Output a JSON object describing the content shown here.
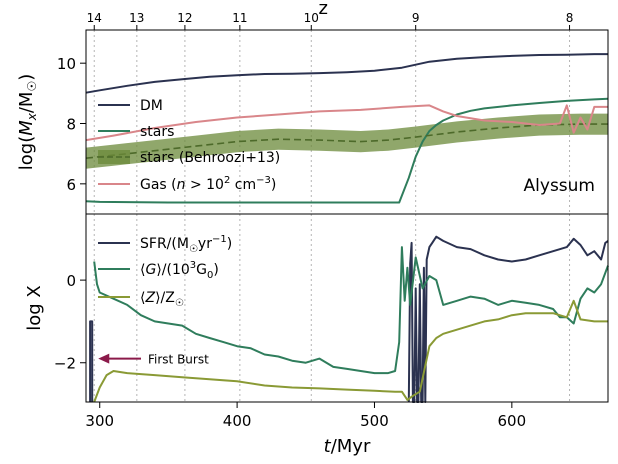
{
  "chart_data": [
    {
      "type": "line",
      "panel": "top",
      "ylabel": "log(M_x/M_☉)",
      "ylabel_parts": {
        "pre": "log(",
        "M": "M",
        "sub_x": "x",
        "slash": "/M",
        "sub_sun": "☉",
        "post": ")"
      },
      "xlim": [
        290,
        670
      ],
      "ylim": [
        5.0,
        11.1
      ],
      "yticks": [
        6,
        8,
        10
      ],
      "top_axis": {
        "label": "z",
        "ticks": [
          {
            "label": "14",
            "t": 296
          },
          {
            "label": "13",
            "t": 327
          },
          {
            "label": "12",
            "t": 362
          },
          {
            "label": "11",
            "t": 402
          },
          {
            "label": "10",
            "t": 454
          },
          {
            "label": "9",
            "t": 530
          },
          {
            "label": "8",
            "t": 642
          }
        ]
      },
      "panel_label": "Alyssum",
      "legend_position": "upper-left",
      "legend": [
        {
          "label": "DM",
          "color": "#2b3250",
          "style": "solid"
        },
        {
          "label": "stars",
          "color": "#2f7d5c",
          "style": "solid"
        },
        {
          "label": "stars (Behroozi+13)",
          "color": "#6b8a3a",
          "style": "dashed-band"
        },
        {
          "label_pre": "Gas (",
          "label_n": "n",
          "label_gt": " > 10",
          "label_exp": "2",
          "label_unit": " cm",
          "label_unit_exp": "−3",
          "label_post": ")",
          "color": "#d9868a",
          "style": "solid"
        }
      ],
      "series": [
        {
          "name": "DM",
          "color": "#2b3250",
          "x": [
            290,
            300,
            320,
            340,
            360,
            380,
            400,
            420,
            440,
            460,
            480,
            500,
            520,
            540,
            560,
            580,
            600,
            620,
            640,
            660,
            670
          ],
          "y": [
            9.02,
            9.1,
            9.25,
            9.38,
            9.47,
            9.55,
            9.6,
            9.64,
            9.65,
            9.67,
            9.7,
            9.75,
            9.85,
            10.05,
            10.15,
            10.2,
            10.24,
            10.27,
            10.28,
            10.3,
            10.3
          ]
        },
        {
          "name": "stars",
          "color": "#2f7d5c",
          "x": [
            290,
            300,
            350,
            400,
            450,
            500,
            518,
            525,
            530,
            535,
            540,
            545,
            550,
            560,
            570,
            580,
            600,
            620,
            640,
            660,
            670
          ],
          "y": [
            5.42,
            5.4,
            5.38,
            5.38,
            5.38,
            5.38,
            5.38,
            6.2,
            6.9,
            7.4,
            7.75,
            7.95,
            8.1,
            8.3,
            8.42,
            8.5,
            8.6,
            8.68,
            8.75,
            8.8,
            8.82
          ]
        },
        {
          "name": "stars (Behroozi+13)",
          "color": "#6b8a3a",
          "x": [
            290,
            310,
            340,
            370,
            400,
            430,
            460,
            490,
            510,
            530,
            560,
            590,
            620,
            650,
            670
          ],
          "y": [
            6.85,
            6.95,
            7.1,
            7.25,
            7.4,
            7.48,
            7.45,
            7.4,
            7.45,
            7.55,
            7.72,
            7.85,
            7.95,
            7.98,
            7.98
          ],
          "band_halfwidth": 0.35
        },
        {
          "name": "Gas",
          "color": "#d9868a",
          "x": [
            290,
            310,
            340,
            370,
            400,
            430,
            460,
            490,
            520,
            540,
            550,
            560,
            580,
            600,
            620,
            635,
            640,
            645,
            650,
            655,
            660,
            670
          ],
          "y": [
            7.45,
            7.6,
            7.85,
            8.05,
            8.2,
            8.3,
            8.4,
            8.45,
            8.55,
            8.6,
            8.4,
            8.25,
            8.1,
            8.05,
            7.95,
            8.0,
            8.6,
            7.7,
            8.2,
            7.8,
            8.55,
            8.55
          ]
        }
      ]
    },
    {
      "type": "line",
      "panel": "bottom",
      "ylabel": "log X",
      "xlabel": "t/Myr",
      "xlabel_parts": {
        "var": "t",
        "unit": "/Myr"
      },
      "xlim": [
        290,
        670
      ],
      "ylim": [
        -2.95,
        1.6
      ],
      "yticks": [
        -2,
        0
      ],
      "ytick_labels": [
        "−2",
        "0"
      ],
      "xticks": [
        300,
        400,
        500,
        600
      ],
      "legend_position": "upper-left",
      "legend": [
        {
          "label_pre": "SFR/(M",
          "label_sub": "☉",
          "label_post": "yr",
          "label_exp": "−1",
          "label_end": ")",
          "color": "#2b3250"
        },
        {
          "label_pre": "⟨",
          "label_var": "G",
          "label_mid": "⟩/(10",
          "label_exp": "3",
          "label_post": "G",
          "label_sub": "0",
          "label_end": ")",
          "color": "#2f7d5c"
        },
        {
          "label_pre": "⟨",
          "label_var": "Z",
          "label_mid": "⟩/Z",
          "label_sub": "☉",
          "color": "#8a9a35"
        }
      ],
      "annotation": {
        "text": "First Burst",
        "arrow_to_t": 296,
        "at_y": -1.9,
        "color": "#8b1a4a"
      },
      "series": [
        {
          "name": "SFR",
          "color": "#2b3250",
          "segments": [
            {
              "x": [
                293,
                293,
                294.5,
                294.5
              ],
              "y": [
                -2.95,
                -1.0,
                -1.0,
                -2.95
              ]
            },
            {
              "x": [
                525,
                526,
                527,
                528,
                529,
                530,
                531,
                532,
                533,
                534,
                535,
                536,
                537,
                538,
                540,
                542,
                545,
                550,
                560,
                570,
                580,
                590,
                600,
                610,
                620,
                630,
                640,
                645,
                650,
                655,
                660,
                665,
                668,
                670
              ],
              "y": [
                -2.95,
                0.4,
                0.9,
                -2.95,
                -2.95,
                -0.2,
                -2.95,
                -2.95,
                -0.1,
                -2.95,
                -2.95,
                0.3,
                -2.95,
                0.5,
                0.8,
                0.9,
                1.05,
                0.95,
                0.8,
                0.75,
                0.6,
                0.5,
                0.45,
                0.5,
                0.6,
                0.7,
                0.8,
                1.0,
                0.85,
                0.6,
                0.7,
                0.5,
                0.9,
                0.95
              ]
            }
          ]
        },
        {
          "name": "G",
          "color": "#2f7d5c",
          "x": [
            296,
            298,
            300,
            310,
            320,
            330,
            340,
            350,
            360,
            370,
            380,
            390,
            400,
            410,
            420,
            430,
            440,
            450,
            460,
            470,
            480,
            490,
            500,
            510,
            515,
            518,
            520,
            522,
            524,
            526,
            530,
            535,
            540,
            545,
            550,
            560,
            570,
            580,
            590,
            600,
            610,
            620,
            630,
            635,
            640,
            645,
            650,
            655,
            660,
            665,
            670
          ],
          "y": [
            0.45,
            -0.1,
            -0.3,
            -0.45,
            -0.6,
            -0.85,
            -1.0,
            -1.05,
            -1.1,
            -1.3,
            -1.4,
            -1.5,
            -1.6,
            -1.65,
            -1.8,
            -1.85,
            -1.95,
            -2.0,
            -1.9,
            -2.1,
            -2.15,
            -2.2,
            -2.25,
            -2.25,
            -2.2,
            -1.5,
            0.8,
            -0.5,
            0.3,
            -0.6,
            0.55,
            -0.2,
            0.1,
            0.0,
            -0.6,
            -0.5,
            -0.4,
            -0.45,
            -0.6,
            -0.5,
            -0.55,
            -0.6,
            -0.7,
            -0.9,
            -0.9,
            -1.05,
            -0.45,
            -0.2,
            -0.3,
            -0.1,
            0.35
          ]
        },
        {
          "name": "Z",
          "color": "#8a9a35",
          "x": [
            296,
            300,
            305,
            310,
            320,
            340,
            360,
            380,
            400,
            420,
            440,
            460,
            480,
            500,
            515,
            520,
            524,
            528,
            533,
            540,
            545,
            550,
            560,
            570,
            580,
            590,
            600,
            610,
            620,
            630,
            640,
            645,
            650,
            660,
            670
          ],
          "y": [
            -2.95,
            -2.6,
            -2.3,
            -2.2,
            -2.25,
            -2.3,
            -2.35,
            -2.4,
            -2.45,
            -2.55,
            -2.6,
            -2.62,
            -2.65,
            -2.68,
            -2.7,
            -2.7,
            -2.9,
            -2.8,
            -2.7,
            -1.6,
            -1.4,
            -1.3,
            -1.2,
            -1.1,
            -1.0,
            -0.95,
            -0.85,
            -0.8,
            -0.8,
            -0.8,
            -0.9,
            -0.5,
            -0.95,
            -1.0,
            -1.0
          ]
        }
      ]
    }
  ]
}
